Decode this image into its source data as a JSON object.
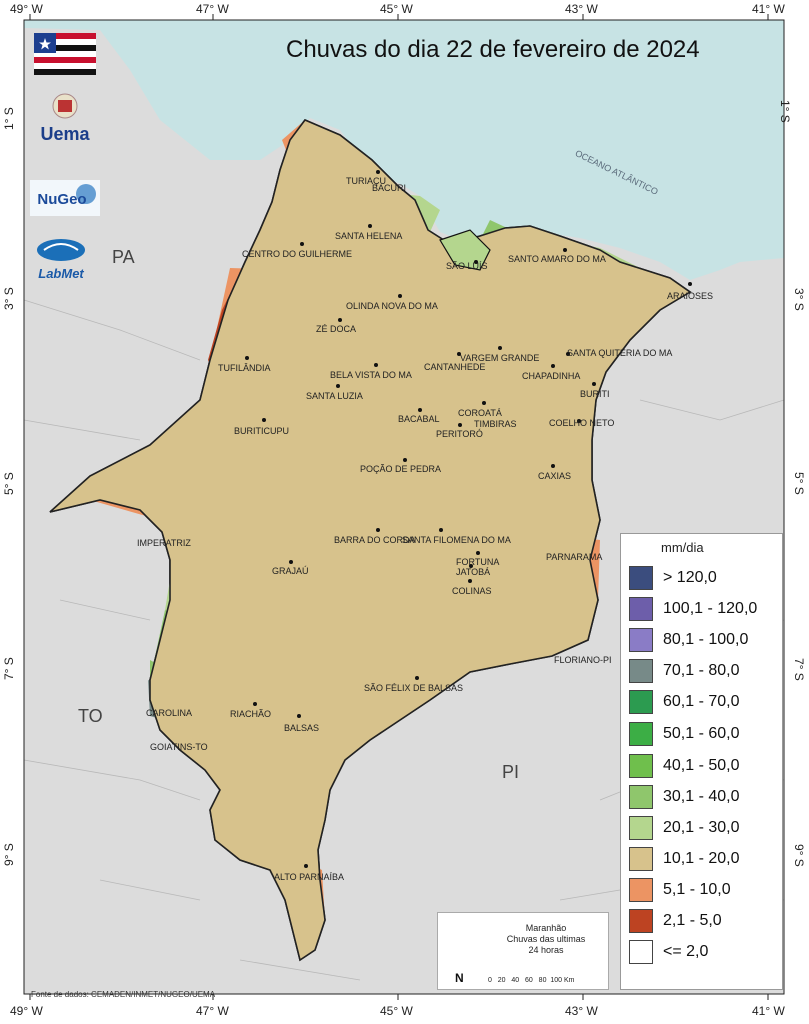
{
  "title": "Chuvas do dia 22 de fevereiro de 2024",
  "axes": {
    "top_lon": [
      "49° W",
      "47° W",
      "45° W",
      "43° W",
      "41° W"
    ],
    "bottom_lon": [
      "49° W",
      "47° W",
      "45° W",
      "43° W",
      "41° W"
    ],
    "lat_left": [
      "1° S",
      "3° S",
      "5° S",
      "7° S",
      "9° S"
    ],
    "lat_right": [
      "1° S",
      "3° S",
      "5° S",
      "7° S",
      "9° S"
    ]
  },
  "ocean_label": "OCEANO ATLÂNTICO",
  "states": {
    "pa": "PA",
    "to": "TO",
    "pi": "PI"
  },
  "cities": {
    "turiacu": "TURIAÇU",
    "bacuri": "BACURI",
    "santa_helena": "SANTA HELENA",
    "centro_guilherme": "CENTRO DO GUILHERME",
    "sao_luis": "SÃO LUÍS",
    "santo_amaro": "SANTO AMARO DO MA",
    "araioses": "ARAIOSES",
    "olinda": "OLINDA NOVA DO MA",
    "ze_doca": "ZÉ DOCA",
    "vargem": "VARGEM GRANDE",
    "cantanhede": "CANTANHEDE",
    "santa_quiteria": "SANTA QUITÉRIA DO MA",
    "chapadinha": "CHAPADINHA",
    "tufilandia": "TUFILÂNDIA",
    "bela_vista": "BELA VISTA DO MA",
    "buriti": "BURITI",
    "santa_luzia": "SANTA LUZIA",
    "coroata": "COROATÁ",
    "bacabal": "BACABAL",
    "timbiras": "TIMBIRAS",
    "coelho_neto": "COELHO NETO",
    "buriticupu": "BURITICUPU",
    "peritoro": "PERITORÓ",
    "pocao": "POÇÃO DE PEDRA",
    "caxias": "CAXIAS",
    "barra_corda": "BARRA DO CORDA",
    "santa_filomena": "SANTA FILOMENA DO MA",
    "imperatriz": "IMPERATRIZ",
    "fortuna": "FORTUNA",
    "parnarama": "PARNARAMA",
    "grajau": "GRAJAÚ",
    "jatoba": "JATOBÁ",
    "colinas": "COLINAS",
    "floriano": "FLORIANO-PI",
    "sao_felix": "SÃO FÉLIX DE BALSAS",
    "carolina": "CAROLINA",
    "riachao": "RIACHÃO",
    "balsas": "BALSAS",
    "goiatins": "GOIATINS-TO",
    "alto_parnaiba": "ALTO PARNAÍBA"
  },
  "legend": {
    "title": "mm/dia",
    "items": [
      {
        "label": "> 120,0",
        "color": "#3b4d7e"
      },
      {
        "label": "100,1 - 120,0",
        "color": "#6d5eaa"
      },
      {
        "label": "80,1 - 100,0",
        "color": "#8a7cc6"
      },
      {
        "label": "70,1 - 80,0",
        "color": "#778a88"
      },
      {
        "label": "60,1 - 70,0",
        "color": "#2c9b50"
      },
      {
        "label": "50,1 - 60,0",
        "color": "#3cae45"
      },
      {
        "label": "40,1 - 50,0",
        "color": "#6fbf4c"
      },
      {
        "label": "30,1 - 40,0",
        "color": "#8fc66c"
      },
      {
        "label": "20,1 - 30,0",
        "color": "#b4d68e"
      },
      {
        "label": "10,1 - 20,0",
        "color": "#d7c28c"
      },
      {
        "label": "5,1 - 10,0",
        "color": "#ec9463"
      },
      {
        "label": "2,1 - 5,0",
        "color": "#bd4322"
      },
      {
        "label": "<= 2,0",
        "color": "#ffffff"
      }
    ]
  },
  "inset": {
    "line1": "Maranhão",
    "line2": "Chuvas das ultimas",
    "line3": "24 horas",
    "north": "N",
    "scale_ticks": [
      "0",
      "20",
      "40",
      "60",
      "80",
      "100 Km"
    ]
  },
  "logos": {
    "uema": "Uema",
    "nugeo": "NuGeo",
    "labmet": "LabMet"
  },
  "source": "Fonte de dados: CEMADEN/INMET/NUGEO/UEMA"
}
